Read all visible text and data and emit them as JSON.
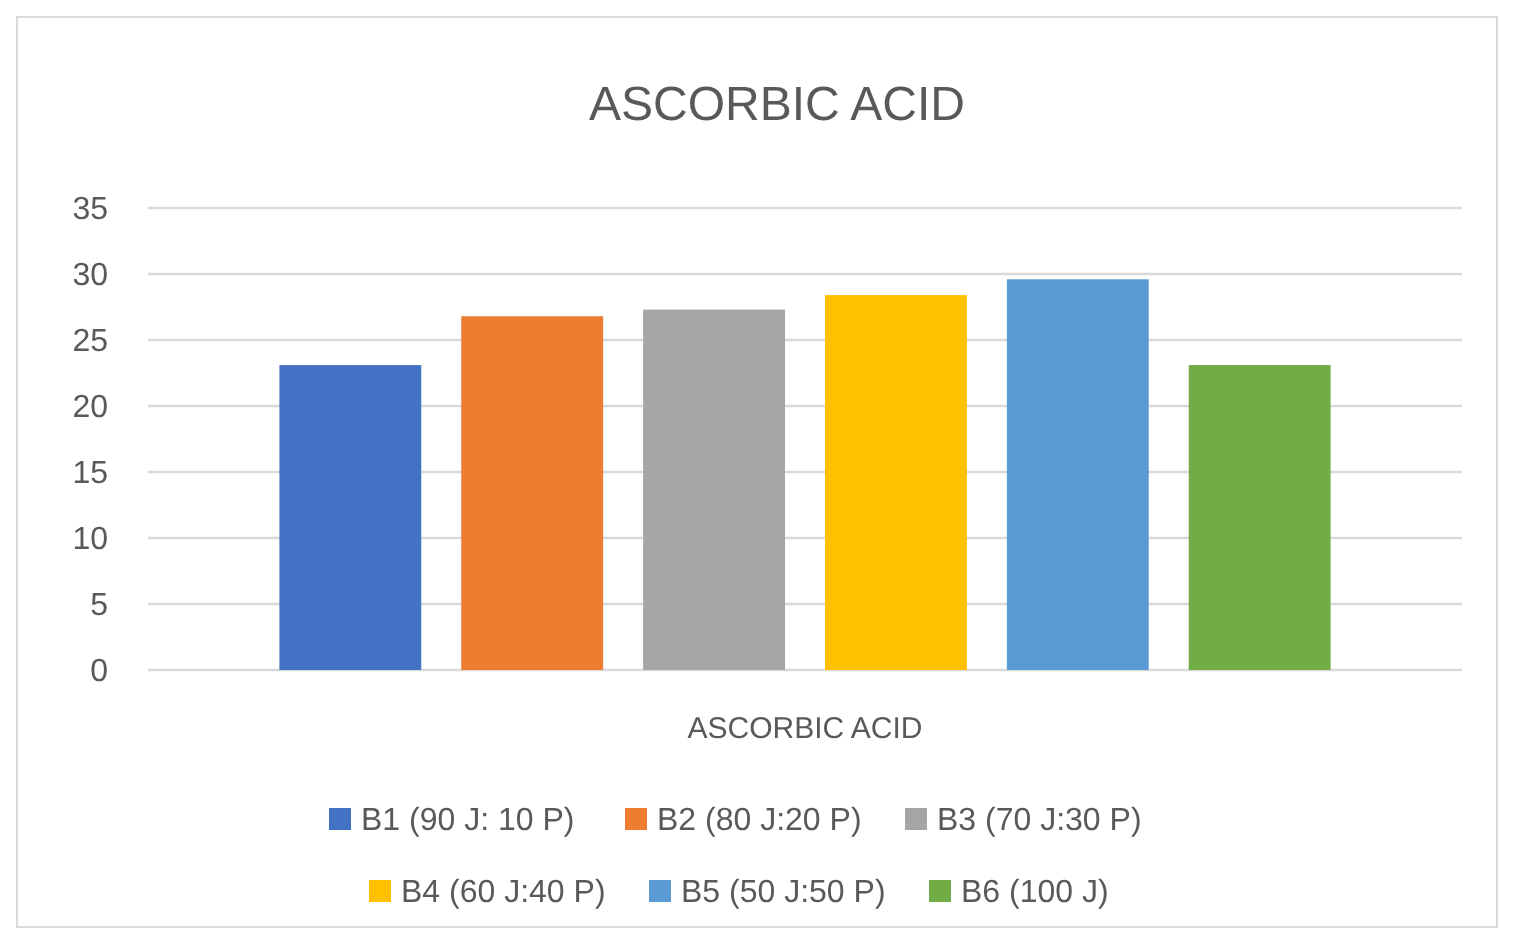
{
  "chart_data": {
    "type": "bar",
    "title": "ASCORBIC ACID",
    "categories": [
      "ASCORBIC ACID"
    ],
    "series": [
      {
        "name": "B1 (90 J: 10 P)",
        "color": "#4472c4",
        "values": [
          23.1
        ]
      },
      {
        "name": "B2 (80 J:20 P)",
        "color": "#ed7d31",
        "values": [
          26.8
        ]
      },
      {
        "name": "B3 (70 J:30 P)",
        "color": "#a5a5a5",
        "values": [
          27.3
        ]
      },
      {
        "name": "B4 (60 J:40 P)",
        "color": "#ffc000",
        "values": [
          28.4
        ]
      },
      {
        "name": "B5 (50 J:50 P)",
        "color": "#5b9bd5",
        "values": [
          29.6
        ]
      },
      {
        "name": "B6 (100 J)",
        "color": "#70ad47",
        "values": [
          23.1
        ]
      }
    ],
    "ylim": [
      0,
      35
    ],
    "yticks": [
      0,
      5,
      10,
      15,
      20,
      25,
      30,
      35
    ],
    "grid": "y",
    "legend": "bottom"
  }
}
